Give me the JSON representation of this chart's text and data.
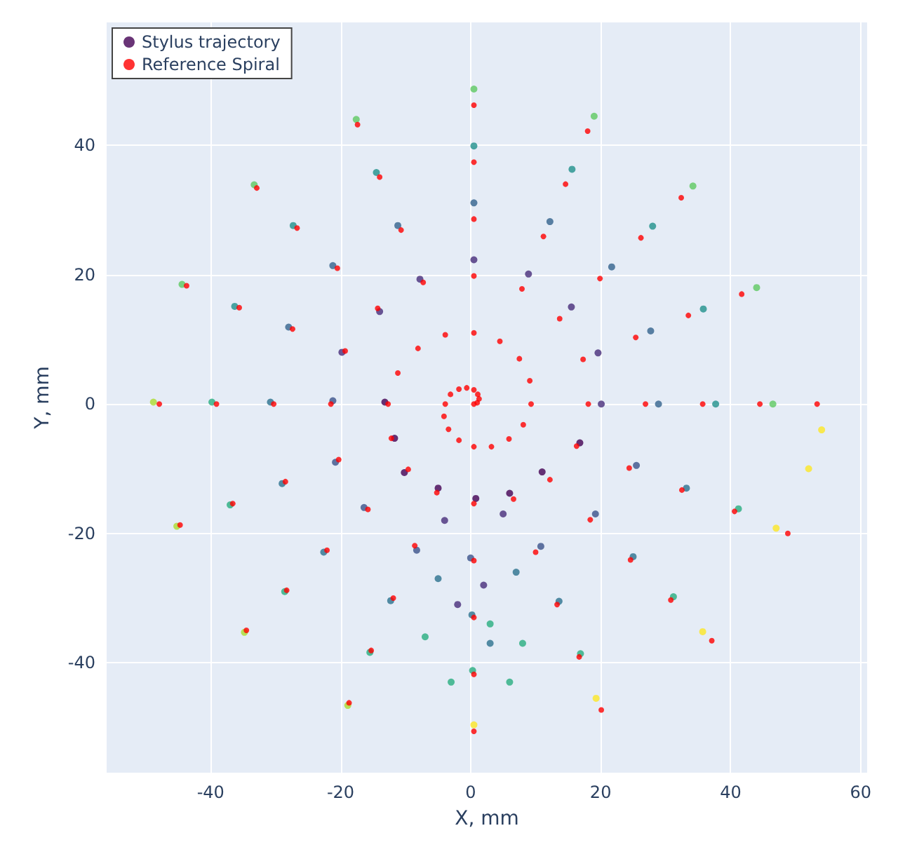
{
  "chart_data": {
    "type": "scatter",
    "xlabel": "X, mm",
    "ylabel": "Y, mm",
    "xlim": [
      -56,
      61
    ],
    "ylim": [
      -57,
      59
    ],
    "xticks": [
      -40,
      -20,
      0,
      20,
      40,
      60
    ],
    "yticks": [
      -40,
      -20,
      0,
      20,
      40
    ],
    "grid": true,
    "legend": "top left",
    "marker": "circle",
    "series": [
      {
        "name": "Stylus trajectory",
        "color": "#440154",
        "x": [
          -13.2,
          -11.7,
          -10.2,
          -5.0,
          0.8,
          6.0,
          11.0,
          16.8,
          20.1,
          19.6,
          15.5,
          8.9,
          0.5,
          -7.8,
          -14.0,
          -19.8,
          -21.2,
          -20.8,
          -16.4,
          -8.3,
          0.0,
          10.8,
          19.2,
          25.5,
          -4,
          2,
          5,
          -2,
          28.9,
          27.7,
          21.7,
          12.2,
          0.5,
          -11.2,
          -21.2,
          -28.0,
          -30.8,
          -29.0,
          -22.6,
          -12.3,
          0.2,
          13.6,
          25.0,
          33.2,
          -5,
          3,
          7,
          37.7,
          35.8,
          28.0,
          15.6,
          0.5,
          -14.5,
          -27.3,
          -36.3,
          -39.8,
          -37.0,
          -28.6,
          -15.5,
          0.3,
          16.9,
          31.2,
          41.2,
          -7,
          -3,
          3,
          6,
          8,
          46.5,
          44.0,
          34.2,
          19.0,
          0.5,
          -17.6,
          -33.3,
          -44.4,
          -48.8,
          -45.2,
          -34.8,
          -18.9,
          0.5,
          19.3,
          35.7,
          47.0,
          52.0,
          54.0
        ],
        "values": [
          0.3,
          -5.3,
          -10.6,
          -13.0,
          -14.6,
          -13.8,
          -10.5,
          -6.0,
          0,
          7.9,
          15.0,
          20.1,
          22.3,
          19.3,
          14.3,
          8.0,
          0.5,
          -9.0,
          -16.0,
          -22.6,
          -23.8,
          -22.0,
          -17.0,
          -9.5,
          -18,
          -28,
          -17,
          -31,
          0,
          11.3,
          21.2,
          28.2,
          31.1,
          27.6,
          21.4,
          11.9,
          0.3,
          -12.3,
          -22.9,
          -30.4,
          -32.6,
          -30.5,
          -23.6,
          -13.0,
          -27,
          -37,
          -26,
          0,
          14.7,
          27.5,
          36.3,
          39.9,
          35.8,
          27.6,
          15.1,
          0.3,
          -15.6,
          -29.0,
          -38.4,
          -41.2,
          -38.6,
          -29.8,
          -16.2,
          -36,
          -43,
          -34,
          -43,
          -37,
          0,
          18.0,
          33.7,
          44.5,
          48.7,
          44.0,
          33.9,
          18.5,
          0.3,
          -18.9,
          -35.3,
          -46.6,
          -49.6,
          -45.5,
          -35.2,
          -19.2,
          -10.0,
          -4.0
        ],
        "colors": [
          "#440154",
          "#440154",
          "#440154",
          "#440154",
          "#440154",
          "#440154",
          "#440154",
          "#440154",
          "#472d7b",
          "#472d7b",
          "#472d7b",
          "#472d7b",
          "#472d7b",
          "#472d7b",
          "#472d7b",
          "#472d7b",
          "#3b528b",
          "#3b528b",
          "#3b528b",
          "#3b528b",
          "#3b528b",
          "#3b528b",
          "#3b528b",
          "#3b528b",
          "#472d7b",
          "#472d7b",
          "#472d7b",
          "#472d7b",
          "#33638d",
          "#33638d",
          "#33638d",
          "#33638d",
          "#33638d",
          "#33638d",
          "#33638d",
          "#33638d",
          "#2c728e",
          "#2c728e",
          "#2c728e",
          "#2c728e",
          "#2c728e",
          "#2c728e",
          "#2c728e",
          "#2c728e",
          "#2c728e",
          "#2c728e",
          "#2c728e",
          "#21918c",
          "#21918c",
          "#21918c",
          "#21918c",
          "#21918c",
          "#21918c",
          "#21918c",
          "#21918c",
          "#28ae80",
          "#28ae80",
          "#28ae80",
          "#28ae80",
          "#28ae80",
          "#28ae80",
          "#28ae80",
          "#28ae80",
          "#28ae80",
          "#28ae80",
          "#28ae80",
          "#28ae80",
          "#28ae80",
          "#5ec962",
          "#5ec962",
          "#5ec962",
          "#5ec962",
          "#5ec962",
          "#5ec962",
          "#5ec962",
          "#5ec962",
          "#addc30",
          "#addc30",
          "#addc30",
          "#addc30",
          "#fde725",
          "#fde725",
          "#fde725",
          "#fde725",
          "#fde725",
          "#fde725"
        ]
      },
      {
        "name": "Reference Spiral",
        "color": "#ff0000",
        "x": [
          0.5,
          1.0,
          1.3,
          1.1,
          0.5,
          -0.6,
          -1.8,
          -3.1,
          -3.9,
          -4.1,
          -3.4,
          -1.8,
          0.5,
          3.2,
          5.9,
          8.1,
          9.3,
          9.1,
          7.5,
          4.5,
          0.5,
          -3.9,
          -8.1,
          -11.2,
          -12.7,
          -12.2,
          -9.6,
          -5.2,
          0.5,
          6.6,
          12.2,
          16.3,
          18.1,
          17.3,
          13.7,
          7.9,
          0.5,
          -7.3,
          -14.3,
          -19.3,
          -21.5,
          -20.3,
          -15.8,
          -8.6,
          0.5,
          10.0,
          18.4,
          24.4,
          26.9,
          25.4,
          19.9,
          11.2,
          0.5,
          -10.7,
          -20.5,
          -27.4,
          -30.3,
          -28.5,
          -22.1,
          -11.9,
          0.5,
          13.3,
          24.6,
          32.5,
          35.7,
          33.5,
          26.2,
          14.6,
          0.5,
          -14.0,
          -26.7,
          -35.6,
          -39.1,
          -36.6,
          -28.3,
          -15.3,
          0.5,
          16.7,
          30.8,
          40.6,
          44.5,
          41.7,
          32.4,
          18.0,
          0.5,
          -17.4,
          -32.9,
          -43.7,
          -47.9,
          -44.7,
          -34.5,
          -18.7,
          0.5,
          20.1,
          37.1,
          48.8,
          53.3
        ],
        "values": [
          0,
          0.2,
          0.8,
          1.5,
          2.2,
          2.5,
          2.3,
          1.5,
          0,
          -1.9,
          -3.9,
          -5.6,
          -6.6,
          -6.6,
          -5.4,
          -3.2,
          0,
          3.6,
          7.0,
          9.7,
          11,
          10.7,
          8.6,
          4.8,
          0,
          -5.3,
          -10.1,
          -13.7,
          -15.4,
          -14.7,
          -11.7,
          -6.5,
          0,
          6.9,
          13.2,
          17.8,
          19.8,
          18.8,
          14.8,
          8.2,
          0,
          -8.6,
          -16.3,
          -21.9,
          -24.2,
          -22.9,
          -17.9,
          -9.9,
          0,
          10.3,
          19.4,
          25.9,
          28.6,
          26.9,
          21.0,
          11.6,
          0,
          -12.0,
          -22.6,
          -30.0,
          -33,
          -31.0,
          -24.1,
          -13.3,
          0,
          13.7,
          25.7,
          34.0,
          37.4,
          35.1,
          27.2,
          14.9,
          0,
          -15.4,
          -28.8,
          -38.1,
          -41.8,
          -39.1,
          -30.3,
          -16.6,
          0,
          17.0,
          31.9,
          42.2,
          46.2,
          43.2,
          33.4,
          18.3,
          0,
          -18.7,
          -35.0,
          -46.2,
          -50.6,
          -47.3,
          -36.6,
          -20.0,
          0
        ]
      }
    ]
  }
}
